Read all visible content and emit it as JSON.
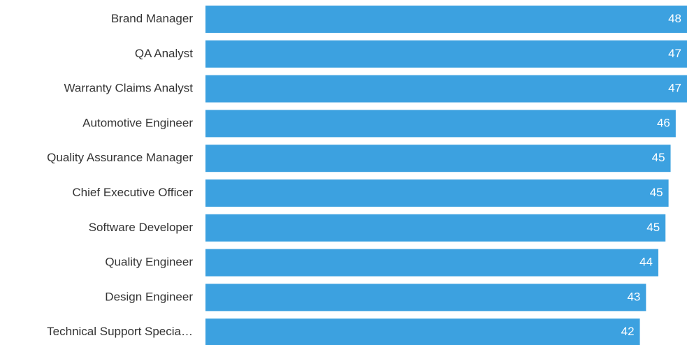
{
  "chart_data": {
    "type": "bar",
    "orientation": "horizontal",
    "categories": [
      "Brand Manager",
      "QA Analyst",
      "Warranty Claims Analyst",
      "Automotive Engineer",
      "Quality Assurance Manager",
      "Chief Executive Officer",
      "Software Developer",
      "Quality Engineer",
      "Design Engineer",
      "Technical Support Specia…"
    ],
    "values": [
      48.0,
      47.0,
      47.2,
      45.9,
      45.4,
      45.2,
      44.9,
      44.2,
      43.0,
      42.4
    ],
    "value_labels": [
      "48",
      "47",
      "47",
      "46",
      "45",
      "45",
      "45",
      "44",
      "43",
      "42"
    ],
    "color": "#3ca1e0",
    "xlim": [
      0,
      47
    ]
  }
}
